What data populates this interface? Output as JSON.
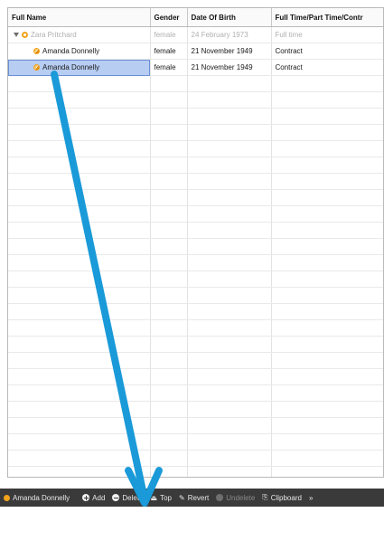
{
  "columns": [
    "Full Name",
    "Gender",
    "Date Of Birth",
    "Full Time/Part Time/Contr"
  ],
  "rows": [
    {
      "name": "Zara Pritchard",
      "gender": "female",
      "dob": "24 February 1973",
      "type": "Full time"
    },
    {
      "name": "Amanda Donnelly",
      "gender": "female",
      "dob": "21 November 1949",
      "type": "Contract"
    },
    {
      "name": "Amanda Donnelly",
      "gender": "female",
      "dob": "21 November 1949",
      "type": "Contract"
    }
  ],
  "toolbar": {
    "current": "Amanda Donnelly",
    "add": "Add",
    "delete": "Delete",
    "top": "Top",
    "revert": "Revert",
    "undelete": "Undelete",
    "clipboard": "Clipboard",
    "more": "»"
  },
  "colors": {
    "accent": "#f2a21a",
    "selection": "#b7cdf2",
    "annotation_arrow": "#1a9ad8"
  },
  "icons": [
    "expand-triangle-icon",
    "record-icon",
    "add-icon",
    "delete-icon",
    "top-icon",
    "revert-icon",
    "undelete-icon",
    "clipboard-icon",
    "more-icon"
  ]
}
